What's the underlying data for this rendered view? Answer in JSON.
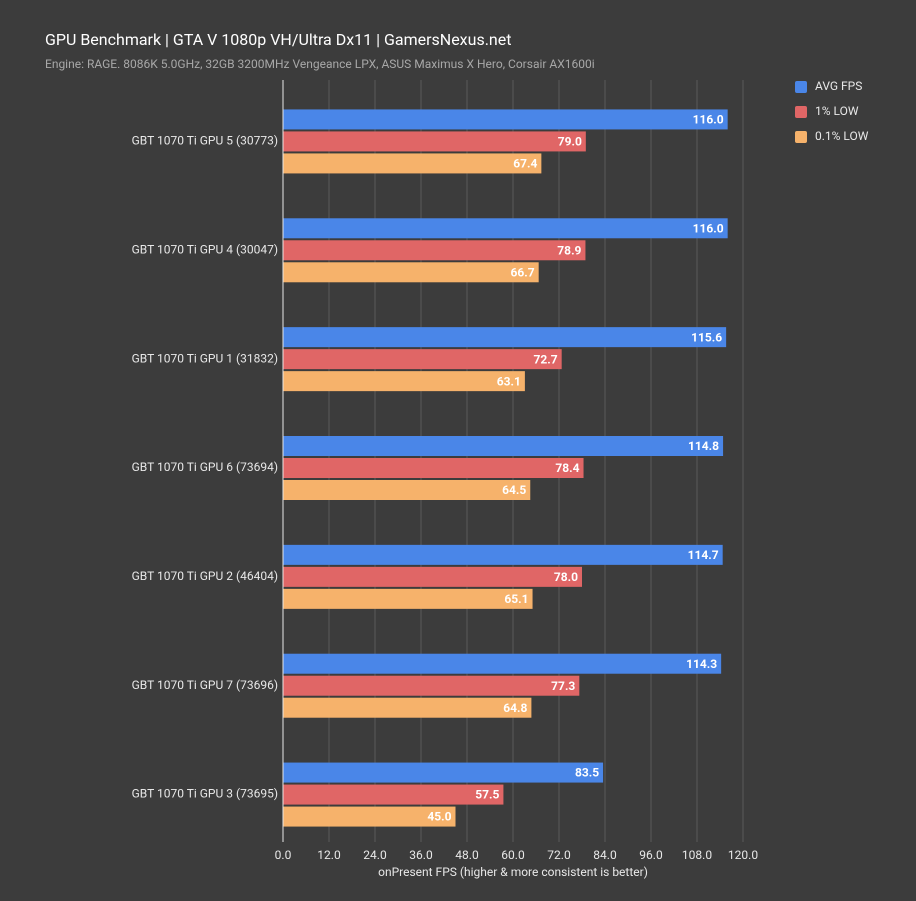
{
  "chart_data": {
    "type": "hbar",
    "title": "GPU Benchmark | GTA V 1080p VH/Ultra Dx11 | GamersNexus.net",
    "subtitle": "Engine: RAGE. 8086K 5.0GHz, 32GB 3200MHz Vengeance LPX, ASUS Maximus X Hero, Corsair AX1600i",
    "x_label": "onPresent FPS (higher & more consistent is better)",
    "categories": [
      "GBT 1070 Ti GPU 5 (30773)",
      "GBT 1070 Ti GPU 4 (30047)",
      "GBT 1070 Ti GPU 1 (31832)",
      "GBT 1070 Ti GPU 6 (73694)",
      "GBT 1070 Ti GPU 2 (46404)",
      "GBT 1070 Ti GPU 7 (73696)",
      "GBT 1070 Ti GPU 3 (73695)"
    ],
    "series": [
      {
        "name": "AVG FPS",
        "color": "#4a86e8",
        "values": [
          116.0,
          116.0,
          115.6,
          114.8,
          114.7,
          114.3,
          83.5
        ],
        "value_labels": [
          "116.0",
          "116.0",
          "115.6",
          "114.8",
          "114.7",
          "114.3",
          "83.5"
        ]
      },
      {
        "name": "1% LOW",
        "color": "#e06666",
        "values": [
          79.0,
          78.9,
          72.7,
          78.4,
          78.0,
          77.3,
          57.5
        ],
        "value_labels": [
          "79.0",
          "78.9",
          "72.7",
          "78.4",
          "78.0",
          "77.3",
          "57.5"
        ]
      },
      {
        "name": "0.1% LOW",
        "color": "#f6b26b",
        "values": [
          67.4,
          66.7,
          63.1,
          64.5,
          65.1,
          64.8,
          45.0
        ],
        "value_labels": [
          "67.4",
          "66.7",
          "63.1",
          "64.5",
          "65.1",
          "64.8",
          "45.0"
        ]
      }
    ],
    "xlim": [
      0,
      120
    ],
    "xticks": [
      {
        "value": 0,
        "label": "0.0"
      },
      {
        "value": 12,
        "label": "12.0"
      },
      {
        "value": 24,
        "label": "24.0"
      },
      {
        "value": 36,
        "label": "36.0"
      },
      {
        "value": 48,
        "label": "48.0"
      },
      {
        "value": 60,
        "label": "60.0"
      },
      {
        "value": 72,
        "label": "72.0"
      },
      {
        "value": 84,
        "label": "84.0"
      },
      {
        "value": 96,
        "label": "96.0"
      },
      {
        "value": 108,
        "label": "108.0"
      },
      {
        "value": 120,
        "label": "120.0"
      }
    ],
    "grid": true,
    "legend": "top-right"
  }
}
